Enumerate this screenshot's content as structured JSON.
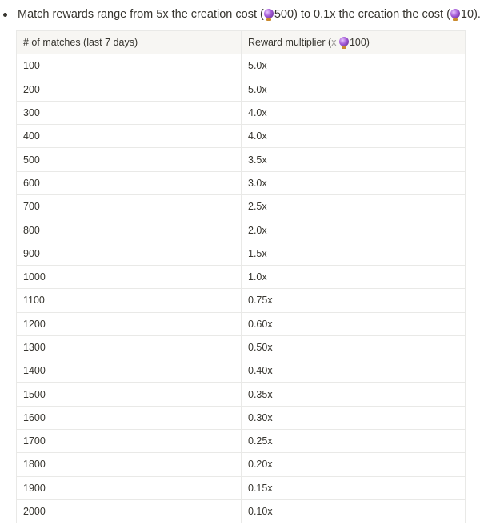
{
  "intro": {
    "part1": "Match rewards range from 5x the creation cost (",
    "amount1": "500",
    "part2": ") to 0.1x the creation the cost (",
    "amount2": "10",
    "part3": ")."
  },
  "currency_icon": "crystal-ball-icon",
  "table": {
    "headers": {
      "matches": "# of matches (last 7 days)",
      "multiplier_prefix": "Reward multiplier (",
      "multiplier_x": "x",
      "multiplier_amount": "100",
      "multiplier_suffix": ")"
    },
    "rows": [
      [
        "100",
        "5.0x"
      ],
      [
        "200",
        "5.0x"
      ],
      [
        "300",
        "4.0x"
      ],
      [
        "400",
        "4.0x"
      ],
      [
        "500",
        "3.5x"
      ],
      [
        "600",
        "3.0x"
      ],
      [
        "700",
        "2.5x"
      ],
      [
        "800",
        "2.0x"
      ],
      [
        "900",
        "1.5x"
      ],
      [
        "1000",
        "1.0x"
      ],
      [
        "1100",
        "0.75x"
      ],
      [
        "1200",
        "0.60x"
      ],
      [
        "1300",
        "0.50x"
      ],
      [
        "1400",
        "0.40x"
      ],
      [
        "1500",
        "0.35x"
      ],
      [
        "1600",
        "0.30x"
      ],
      [
        "1700",
        "0.25x"
      ],
      [
        "1800",
        "0.20x"
      ],
      [
        "1900",
        "0.15x"
      ],
      [
        "2000",
        "0.10x"
      ]
    ]
  }
}
